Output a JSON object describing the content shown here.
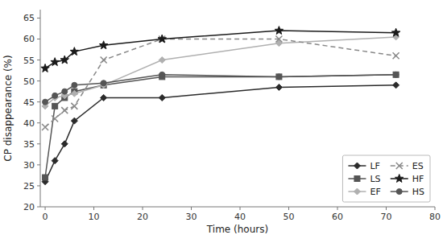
{
  "chart_data": {
    "type": "line",
    "xlabel": "Time (hours)",
    "ylabel": "CP disappearance (%)",
    "x": [
      0,
      2,
      4,
      6,
      12,
      24,
      48,
      72
    ],
    "series": [
      {
        "name": "LF",
        "color": "#2b2b2b",
        "marker": "diamond",
        "line_style": "solid",
        "values": [
          26,
          31,
          35,
          40.5,
          46,
          46,
          48.5,
          49
        ]
      },
      {
        "name": "LS",
        "color": "#555555",
        "marker": "square",
        "line_style": "solid",
        "values": [
          27,
          44,
          46,
          47.5,
          49,
          51,
          51,
          51.5
        ]
      },
      {
        "name": "EF",
        "color": "#b0b0b0",
        "marker": "diamond",
        "line_style": "solid",
        "values": [
          44,
          46,
          46.5,
          47,
          49,
          55,
          59,
          60.5
        ]
      },
      {
        "name": "ES",
        "color": "#888888",
        "marker": "x",
        "line_style": "dashed",
        "values": [
          39,
          41,
          43,
          44,
          55,
          60,
          60,
          56
        ]
      },
      {
        "name": "HF",
        "color": "#1a1a1a",
        "marker": "star",
        "line_style": "solid",
        "values": [
          53,
          54.5,
          55,
          57,
          58.5,
          60,
          62,
          61.5
        ]
      },
      {
        "name": "HS",
        "color": "#555555",
        "marker": "circle",
        "line_style": "solid",
        "values": [
          45,
          46.5,
          47.5,
          49,
          49.5,
          51.5,
          51,
          51.5
        ]
      }
    ],
    "xlim": [
      -1,
      80
    ],
    "ylim": [
      20,
      67
    ],
    "xticks": [
      0,
      10,
      20,
      30,
      40,
      50,
      60,
      70,
      80
    ],
    "yticks": [
      20,
      25,
      30,
      35,
      40,
      45,
      50,
      55,
      60,
      65
    ],
    "grid": false,
    "legend": "lower right"
  }
}
